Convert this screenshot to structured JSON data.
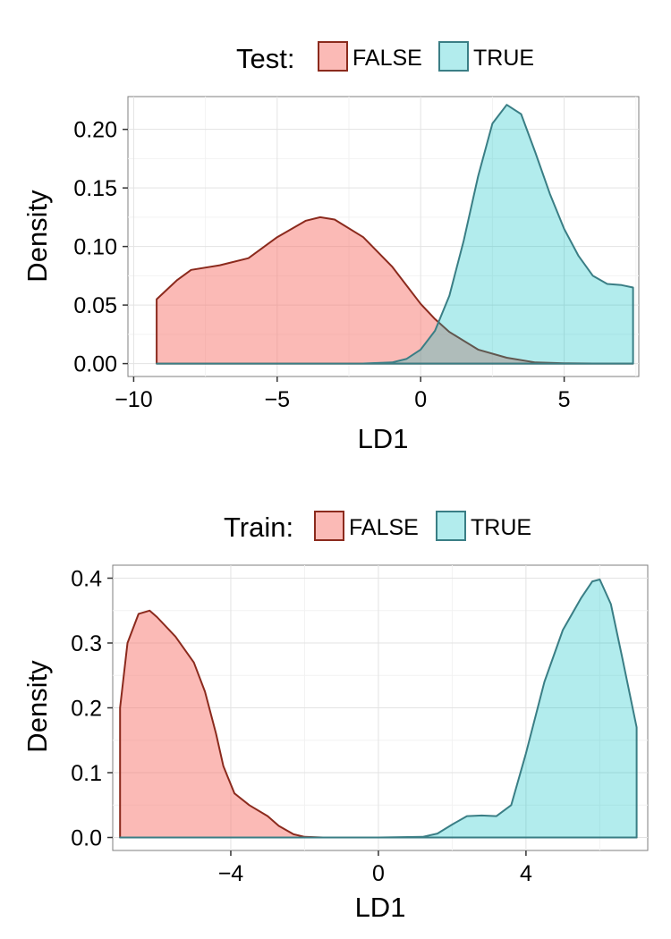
{
  "chart_data": [
    {
      "type": "area",
      "xlabel": "LD1",
      "ylabel": "Density",
      "legend_title": "Test:",
      "legend_position": "top",
      "grid": true,
      "xlim": [
        -10.2,
        7.6
      ],
      "ylim": [
        -0.011,
        0.228
      ],
      "xticks": [
        -10,
        -5,
        0,
        5
      ],
      "xtick_labels": [
        "−10",
        "−5",
        "0",
        "5"
      ],
      "yticks": [
        0.0,
        0.05,
        0.1,
        0.15,
        0.2
      ],
      "ytick_labels": [
        "0.00",
        "0.05",
        "0.10",
        "0.15",
        "0.20"
      ],
      "series": [
        {
          "name": "FALSE",
          "fill": "#F8766D",
          "stroke": "#8B2A1D",
          "x": [
            -9.2,
            -8.5,
            -8.0,
            -7.0,
            -6.0,
            -5.0,
            -4.0,
            -3.5,
            -3.0,
            -2.0,
            -1.0,
            0.0,
            0.5,
            1.0,
            2.0,
            3.0,
            4.0,
            5.0,
            6.0,
            7.4
          ],
          "y": [
            0.055,
            0.071,
            0.08,
            0.084,
            0.09,
            0.108,
            0.122,
            0.125,
            0.123,
            0.108,
            0.083,
            0.051,
            0.038,
            0.027,
            0.012,
            0.005,
            0.001,
            0.0003,
            0.0001,
            0.0
          ]
        },
        {
          "name": "TRUE",
          "fill": "#00BFC4",
          "stroke": "#3A7E85",
          "x": [
            -9.2,
            -3.0,
            -2.0,
            -1.0,
            -0.5,
            0.0,
            0.5,
            1.0,
            1.5,
            2.0,
            2.5,
            3.0,
            3.5,
            4.0,
            4.5,
            5.0,
            5.5,
            6.0,
            6.5,
            7.0,
            7.4
          ],
          "y": [
            0.0,
            0.0,
            0.0001,
            0.001,
            0.004,
            0.012,
            0.028,
            0.058,
            0.105,
            0.16,
            0.205,
            0.221,
            0.213,
            0.18,
            0.145,
            0.115,
            0.092,
            0.075,
            0.068,
            0.067,
            0.065
          ]
        }
      ]
    },
    {
      "type": "area",
      "xlabel": "LD1",
      "ylabel": "Density",
      "legend_title": "Train:",
      "legend_position": "top",
      "grid": true,
      "xlim": [
        -7.2,
        7.3
      ],
      "ylim": [
        -0.02,
        0.42
      ],
      "xticks": [
        -4,
        0,
        4
      ],
      "xtick_labels": [
        "−4",
        "0",
        "4"
      ],
      "yticks": [
        0.0,
        0.1,
        0.2,
        0.3,
        0.4
      ],
      "ytick_labels": [
        "0.0",
        "0.1",
        "0.2",
        "0.3",
        "0.4"
      ],
      "series": [
        {
          "name": "FALSE",
          "fill": "#F8766D",
          "stroke": "#8B2A1D",
          "x": [
            -7.0,
            -6.8,
            -6.5,
            -6.2,
            -6.0,
            -5.5,
            -5.0,
            -4.7,
            -4.4,
            -4.2,
            -3.9,
            -3.5,
            -3.0,
            -2.7,
            -2.3,
            -2.0,
            -1.5,
            0.0,
            3.0,
            7.0
          ],
          "y": [
            0.2,
            0.3,
            0.345,
            0.35,
            0.34,
            0.31,
            0.27,
            0.225,
            0.16,
            0.11,
            0.068,
            0.05,
            0.033,
            0.018,
            0.005,
            0.001,
            0.0,
            0.0,
            0.0,
            0.0
          ]
        },
        {
          "name": "TRUE",
          "fill": "#00BFC4",
          "stroke": "#3A7E85",
          "x": [
            -7.0,
            0.0,
            1.2,
            1.6,
            2.0,
            2.4,
            2.8,
            3.2,
            3.6,
            4.0,
            4.5,
            5.0,
            5.5,
            5.8,
            6.0,
            6.3,
            6.6,
            7.0
          ],
          "y": [
            0.0,
            0.0,
            0.001,
            0.006,
            0.02,
            0.033,
            0.034,
            0.033,
            0.05,
            0.13,
            0.24,
            0.32,
            0.37,
            0.395,
            0.398,
            0.36,
            0.28,
            0.17
          ]
        }
      ]
    }
  ]
}
